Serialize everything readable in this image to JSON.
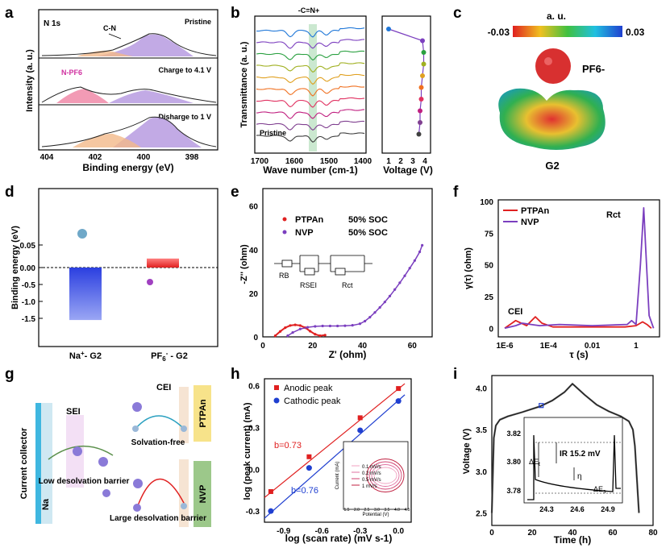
{
  "colors": {
    "purple": "#7b3fbf",
    "red": "#e02020",
    "blue": "#1f3fd0",
    "orange": "#f08a30",
    "pink": "#e0457b",
    "green": "#2a9d4a",
    "lightpurple": "#b79be0",
    "lightorange": "#f2b98a"
  },
  "panels": {
    "a": "a",
    "b": "b",
    "c": "c",
    "d": "d",
    "e": "e",
    "f": "f",
    "g": "g",
    "h": "h",
    "i": "i"
  },
  "a": {
    "corner": "N 1s",
    "states": [
      "Pristine",
      "Charge to 4.1 V",
      "Disharge to 1 V"
    ],
    "tags": [
      "C-N",
      "N-PF6"
    ],
    "ylabel": "Intensity (a. u.)",
    "xlabel": "Binding energy (eV)",
    "xticks": [
      "404",
      "402",
      "400",
      "398"
    ]
  },
  "b": {
    "band": "-C=N+",
    "ylabel": "Transmittance (a. u.)",
    "xlabel": "Wave number (cm-1)",
    "xticks": [
      "1700",
      "1600",
      "1500",
      "1400"
    ],
    "pristine": "Pristine",
    "vxlabel": "Voltage (V)",
    "vxticks": [
      "1",
      "2",
      "3",
      "4"
    ],
    "curve_colors": [
      "#1f77d8",
      "#7c3fbf",
      "#2aa040",
      "#a0b020",
      "#e0a020",
      "#f07020",
      "#e03060",
      "#c02080",
      "#804090",
      "#404040"
    ]
  },
  "c": {
    "scale_title": "a. u.",
    "min": "-0.03",
    "max": "0.03",
    "anion": "PF6-",
    "solvent": "G2"
  },
  "d": {
    "ylabel": "Binding energy (eV)",
    "yticks": [
      "0.05",
      "0.00",
      "-0.5",
      "-1.0",
      "-1.5"
    ]
  },
  "e": {
    "legend": [
      {
        "name": "PTPAn",
        "soc": "50% SOC"
      },
      {
        "name": "NVP",
        "soc": "50% SOC"
      }
    ],
    "ylabel": "-Z'' (ohm)",
    "xlabel": "Z' (ohm)",
    "xticks": [
      "0",
      "20",
      "40",
      "60"
    ],
    "yticks": [
      "0",
      "20",
      "40",
      "60"
    ],
    "circuit": [
      "RB",
      "RSEI",
      "Rct"
    ]
  },
  "f": {
    "legend": [
      "PTPAn",
      "NVP"
    ],
    "ylabel": "γ(τ) (ohm)",
    "xlabel": "τ (s)",
    "xticks": [
      "1E-6",
      "1E-4",
      "0.01",
      "1"
    ],
    "yticks": [
      "0",
      "25",
      "50",
      "75",
      "100"
    ],
    "rct": "Rct",
    "cei": "CEI"
  },
  "g": {
    "collector": "Current collector",
    "na": "Na",
    "sei": "SEI",
    "cei": "CEI",
    "ptpan": "PTPAn",
    "nvp": "NVP",
    "free": "Solvation-free",
    "low": "Low desolvation barrier",
    "large": "Large desolvation barrier"
  },
  "h": {
    "legend": [
      "Anodic peak",
      "Cathodic peak"
    ],
    "ylabel": "log (peak current) (mA)",
    "xlabel": "log (scan rate) (mV s-1)",
    "xticks": [
      "-0.9",
      "-0.6",
      "-0.3",
      "0.0"
    ],
    "yticks": [
      "-0.3",
      "0.0",
      "0.3",
      "0.6"
    ],
    "b1": "b=0.73",
    "b2": "b=0.76",
    "inset_legend": [
      "0.1 mV/s",
      "0.2 mV/s",
      "0.5 mV/s",
      "1 mV/s"
    ],
    "inset_xlabel": "Potential (V)",
    "inset_ylabel": "Current (mA)",
    "inset_xticks": [
      "1.5",
      "2.0",
      "2.5",
      "3.0",
      "3.5",
      "4.0",
      "4.5"
    ]
  },
  "i": {
    "ylabel": "Voltage (V)",
    "xlabel": "Time (h)",
    "xticks": [
      "0",
      "20",
      "40",
      "60",
      "80"
    ],
    "yticks": [
      "2.5",
      "3.0",
      "3.5",
      "4.0"
    ],
    "inset_yticks": [
      "3.82",
      "3.80",
      "3.78"
    ],
    "inset_xticks": [
      "24.3",
      "24.6",
      "24.9"
    ],
    "ir": "IR 15.2 mV",
    "eta": "η"
  },
  "chart_data": [
    {
      "panel": "a",
      "type": "line",
      "title": "",
      "xlabel": "Binding energy (eV)",
      "ylabel": "Intensity (a. u.)",
      "xlim": [
        405,
        397
      ],
      "series": [
        {
          "name": "Pristine"
        },
        {
          "name": "Charge to 4.1 V"
        },
        {
          "name": "Disharge to 1 V"
        }
      ],
      "peaks_eV": {
        "C-N": 400.0,
        "N-PF6": 402.3
      }
    },
    {
      "panel": "b",
      "type": "line",
      "xlabel": "Wave number (cm-1)",
      "ylabel": "Transmittance (a. u.)",
      "xlim": [
        1700,
        1400
      ],
      "annotation": "-C=N+",
      "band_cm": 1555
    },
    {
      "panel": "b-right",
      "type": "line",
      "xlabel": "Voltage (V)",
      "xlim": [
        1,
        4
      ],
      "points": [
        1.0,
        3.8,
        3.9,
        3.9,
        3.8,
        3.7,
        3.7,
        3.6,
        3.6,
        3.5
      ]
    },
    {
      "panel": "d",
      "type": "bar",
      "categories": [
        "Na+- G2",
        "PF6- - G2"
      ],
      "values": [
        -1.55,
        0.02
      ],
      "ylabel": "Binding energy (eV)"
    },
    {
      "panel": "e",
      "type": "scatter",
      "xlabel": "Z' (ohm)",
      "ylabel": "-Z'' (ohm)",
      "xlim": [
        0,
        68
      ],
      "ylim": [
        0,
        68
      ],
      "series": [
        {
          "name": "PTPAn 50% SOC",
          "x": [
            5,
            7,
            9,
            11,
            13,
            15,
            17,
            19,
            21,
            23,
            25
          ],
          "y": [
            0.5,
            2.5,
            4.2,
            5.2,
            5.5,
            5.2,
            4.2,
            2.6,
            1.2,
            0.5,
            0.8
          ]
        },
        {
          "name": "NVP 50% SOC",
          "x": [
            10,
            12,
            15,
            18,
            21,
            24,
            27,
            30,
            33,
            36,
            39,
            41,
            43,
            45,
            47,
            49,
            51,
            53,
            55,
            57,
            59,
            61,
            63,
            64
          ],
          "y": [
            0.5,
            2.0,
            3.6,
            4.4,
            4.8,
            5.0,
            5.0,
            5.0,
            5.1,
            5.3,
            6.0,
            7.2,
            9.0,
            11.2,
            13.5,
            16.0,
            18.7,
            21.7,
            24.8,
            28.0,
            31.5,
            35.0,
            39.0,
            42.0
          ]
        }
      ]
    },
    {
      "panel": "f",
      "type": "line",
      "xlabel": "τ (s)",
      "ylabel": "γ(τ) (ohm)",
      "ylim": [
        -3,
        100
      ],
      "series": [
        {
          "name": "PTPAn",
          "x": [
            -6,
            -5.5,
            -5,
            -4.6,
            -4.3,
            -3.8,
            -2,
            -0.5,
            0,
            0.3,
            0.5,
            0.7
          ],
          "y": [
            0,
            6,
            2,
            9,
            4,
            1,
            1,
            1,
            2,
            5,
            3,
            0
          ]
        },
        {
          "name": "NVP",
          "x": [
            -6,
            -5.5,
            -5.2,
            -4.8,
            -4.4,
            -3.5,
            -2,
            -0.4,
            -0.2,
            0,
            0.2,
            0.35,
            0.45,
            0.6,
            0.8
          ],
          "y": [
            0,
            2,
            4,
            3,
            2,
            3,
            2,
            3,
            6,
            3,
            50,
            95,
            60,
            10,
            0
          ]
        }
      ]
    },
    {
      "panel": "h",
      "type": "scatter",
      "xlabel": "log (scan rate) (mV s-1)",
      "ylabel": "log (peak current) (mA)",
      "xlim": [
        -1.05,
        0.1
      ],
      "ylim": [
        -0.38,
        0.65
      ],
      "series": [
        {
          "name": "Anodic peak",
          "x": [
            -1.0,
            -0.7,
            -0.3,
            0.0
          ],
          "y": [
            -0.16,
            0.09,
            0.37,
            0.58
          ]
        },
        {
          "name": "Cathodic peak",
          "x": [
            -1.0,
            -0.7,
            -0.3,
            0.0
          ],
          "y": [
            -0.3,
            0.01,
            0.28,
            0.49
          ]
        }
      ]
    },
    {
      "panel": "i",
      "type": "line",
      "xlabel": "Time (h)",
      "ylabel": "Voltage (V)",
      "xlim": [
        0,
        80
      ],
      "ylim": [
        2.35,
        4.15
      ],
      "x": [
        0,
        1,
        2,
        4,
        8,
        15,
        24,
        30,
        36,
        40,
        41,
        46,
        52,
        58,
        64,
        68,
        70,
        71,
        73
      ],
      "y": [
        2.5,
        3.4,
        3.55,
        3.62,
        3.66,
        3.71,
        3.78,
        3.85,
        3.95,
        4.05,
        4.03,
        3.92,
        3.8,
        3.72,
        3.66,
        3.6,
        3.5,
        3.3,
        2.5
      ]
    }
  ]
}
